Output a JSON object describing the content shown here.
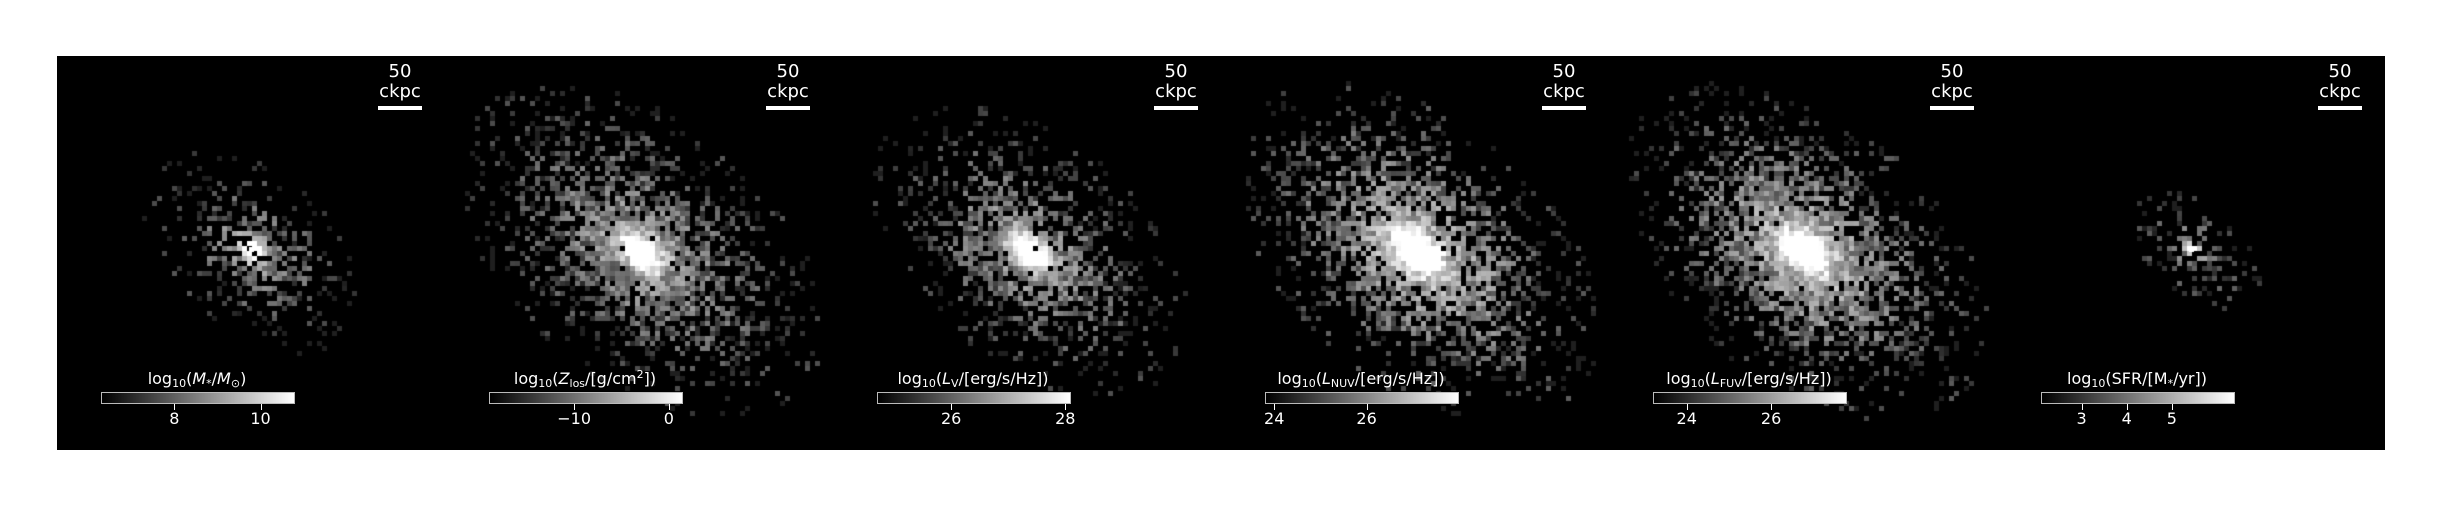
{
  "figure": {
    "panels": [
      {
        "scalebar_label": "50 ckpc",
        "colorbar": {
          "prefix": "log",
          "prefix_sub": "10",
          "label_html": "(<i>M</i><sub>*</sub>/<i>M</i><sub>⊙</sub>)",
          "range": [
            6.3,
            10.8
          ],
          "ticks": [
            {
              "value": 8,
              "label": "8"
            },
            {
              "value": 10,
              "label": "10"
            }
          ]
        },
        "map": {
          "spread": 0.55,
          "fill": 0.55,
          "brightness": 0.55,
          "core": 0.9,
          "seed": 11
        }
      },
      {
        "scalebar_label": "50 ckpc",
        "colorbar": {
          "prefix": "log",
          "prefix_sub": "10",
          "label_html": "(<i>Z</i><sub>los</sub>/[g/cm<sup>2</sup>])",
          "range": [
            -19,
            1.5
          ],
          "ticks": [
            {
              "value": -10,
              "label": "−10"
            },
            {
              "value": 0,
              "label": "0"
            }
          ]
        },
        "map": {
          "spread": 1.0,
          "fill": 0.8,
          "brightness": 0.6,
          "core": 0.8,
          "seed": 23
        }
      },
      {
        "scalebar_label": "50 ckpc",
        "colorbar": {
          "prefix": "log",
          "prefix_sub": "10",
          "label_html": "(<i>L</i><sub>V</sub>/[erg/s/Hz])",
          "range": [
            24.7,
            28.1
          ],
          "ticks": [
            {
              "value": 26,
              "label": "26"
            },
            {
              "value": 28,
              "label": "28"
            }
          ]
        },
        "map": {
          "spread": 0.85,
          "fill": 0.7,
          "brightness": 0.6,
          "core": 0.9,
          "seed": 37
        }
      },
      {
        "scalebar_label": "50 ckpc",
        "colorbar": {
          "prefix": "log",
          "prefix_sub": "10",
          "label_html": "(<i>L</i><sub>NUV</sub>/[erg/s/Hz])",
          "range": [
            23.8,
            28.0
          ],
          "ticks": [
            {
              "value": 24,
              "label": "24"
            },
            {
              "value": 26,
              "label": "26"
            }
          ]
        },
        "map": {
          "spread": 1.0,
          "fill": 0.85,
          "brightness": 0.75,
          "core": 0.95,
          "seed": 41
        }
      },
      {
        "scalebar_label": "50 ckpc",
        "colorbar": {
          "prefix": "log",
          "prefix_sub": "10",
          "label_html": "(<i>L</i><sub>FUV</sub>/[erg/s/Hz])",
          "range": [
            23.2,
            27.8
          ],
          "ticks": [
            {
              "value": 24,
              "label": "24"
            },
            {
              "value": 26,
              "label": "26"
            }
          ]
        },
        "map": {
          "spread": 1.0,
          "fill": 0.85,
          "brightness": 0.72,
          "core": 0.95,
          "seed": 53
        }
      },
      {
        "scalebar_label": "50 ckpc",
        "colorbar": {
          "prefix": "log",
          "prefix_sub": "10",
          "label_html": "(SFR/[M<sub>*</sub>/yr])",
          "range": [
            2.1,
            6.4
          ],
          "ticks": [
            {
              "value": 3,
              "label": "3"
            },
            {
              "value": 4,
              "label": "4"
            },
            {
              "value": 5,
              "label": "5"
            }
          ]
        },
        "map": {
          "spread": 0.28,
          "fill": 0.45,
          "brightness": 0.5,
          "core": 0.9,
          "seed": 67
        }
      }
    ]
  }
}
